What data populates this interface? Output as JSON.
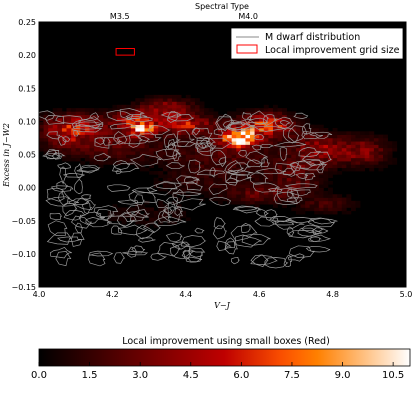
{
  "chart_data": {
    "type": "heatmap",
    "xlabel": "V−J",
    "ylabel": "Excess in J−W2",
    "top_axis_label": "Spectral Type",
    "top_ticks": [
      {
        "x": 4.22,
        "label": "M3.5"
      },
      {
        "x": 4.57,
        "label": "M4.0"
      }
    ],
    "xlim": [
      4.0,
      5.0
    ],
    "ylim": [
      -0.15,
      0.25
    ],
    "x_ticks": [
      4.0,
      4.2,
      4.4,
      4.6,
      4.8,
      5.0
    ],
    "x_tick_labels": [
      "4.0",
      "4.2",
      "4.4",
      "4.6",
      "4.8",
      "5.0"
    ],
    "y_ticks": [
      -0.15,
      -0.1,
      -0.05,
      0.0,
      0.05,
      0.1,
      0.15,
      0.2,
      0.25
    ],
    "y_tick_labels": [
      "−0.15",
      "−0.10",
      "−0.05",
      "0.00",
      "0.05",
      "0.10",
      "0.15",
      "0.20",
      "0.25"
    ],
    "legend": {
      "position": "top-right",
      "entries": [
        {
          "label": "M dwarf distribution",
          "kind": "line",
          "color": "#888888"
        },
        {
          "label": "Local improvement grid size",
          "kind": "box",
          "color": "#ff0000"
        }
      ]
    },
    "grid_box": {
      "x": [
        4.21,
        4.26
      ],
      "y": [
        0.2,
        0.21
      ],
      "color": "#ff0000"
    },
    "colorbar": {
      "title": "Local improvement using small boxes (Red)",
      "range": [
        0,
        11
      ],
      "ticks": [
        0.0,
        1.5,
        3.0,
        4.5,
        6.0,
        7.5,
        9.0,
        10.5
      ],
      "tick_labels": [
        "0.0",
        "1.5",
        "3.0",
        "4.5",
        "6.0",
        "7.5",
        "9.0",
        "10.5"
      ],
      "colormap": "gist_heat"
    },
    "heatmap_features": [
      {
        "x": 4.55,
        "y": 0.075,
        "sx": 0.035,
        "sy": 0.009,
        "v": 10.5
      },
      {
        "x": 4.28,
        "y": 0.09,
        "sx": 0.025,
        "sy": 0.008,
        "v": 8.0
      },
      {
        "x": 4.62,
        "y": 0.095,
        "sx": 0.05,
        "sy": 0.012,
        "v": 6.5
      },
      {
        "x": 4.4,
        "y": 0.095,
        "sx": 0.06,
        "sy": 0.01,
        "v": 5.0
      },
      {
        "x": 4.1,
        "y": 0.095,
        "sx": 0.06,
        "sy": 0.012,
        "v": 4.5
      },
      {
        "x": 4.35,
        "y": 0.12,
        "sx": 0.05,
        "sy": 0.01,
        "v": 4.0
      },
      {
        "x": 4.2,
        "y": 0.065,
        "sx": 0.09,
        "sy": 0.018,
        "v": 2.5
      },
      {
        "x": 4.5,
        "y": 0.05,
        "sx": 0.1,
        "sy": 0.018,
        "v": 2.2
      },
      {
        "x": 4.76,
        "y": 0.06,
        "sx": 0.05,
        "sy": 0.015,
        "v": 4.0
      },
      {
        "x": 4.88,
        "y": 0.055,
        "sx": 0.05,
        "sy": 0.015,
        "v": 3.5
      },
      {
        "x": 4.7,
        "y": 0.03,
        "sx": 0.06,
        "sy": 0.012,
        "v": 2.0
      },
      {
        "x": 4.45,
        "y": 0.01,
        "sx": 0.1,
        "sy": 0.015,
        "v": 1.2
      },
      {
        "x": 4.6,
        "y": -0.01,
        "sx": 0.06,
        "sy": 0.01,
        "v": 2.5
      },
      {
        "x": 4.78,
        "y": -0.025,
        "sx": 0.06,
        "sy": 0.01,
        "v": 1.8
      },
      {
        "x": 4.3,
        "y": -0.04,
        "sx": 0.1,
        "sy": 0.015,
        "v": 0.8
      },
      {
        "x": 4.25,
        "y": 0.105,
        "sx": 0.04,
        "sy": 0.01,
        "v": 3.5
      },
      {
        "x": 4.07,
        "y": 0.075,
        "sx": 0.04,
        "sy": 0.012,
        "v": 3.0
      },
      {
        "x": 4.7,
        "y": 0.005,
        "sx": 0.05,
        "sy": 0.01,
        "v": 2.0
      }
    ],
    "contour_bands": [
      {
        "x0": 4.02,
        "x1": 4.78,
        "ymin": -0.115,
        "ymax": 0.112,
        "color": "#9a9a9a"
      }
    ]
  }
}
